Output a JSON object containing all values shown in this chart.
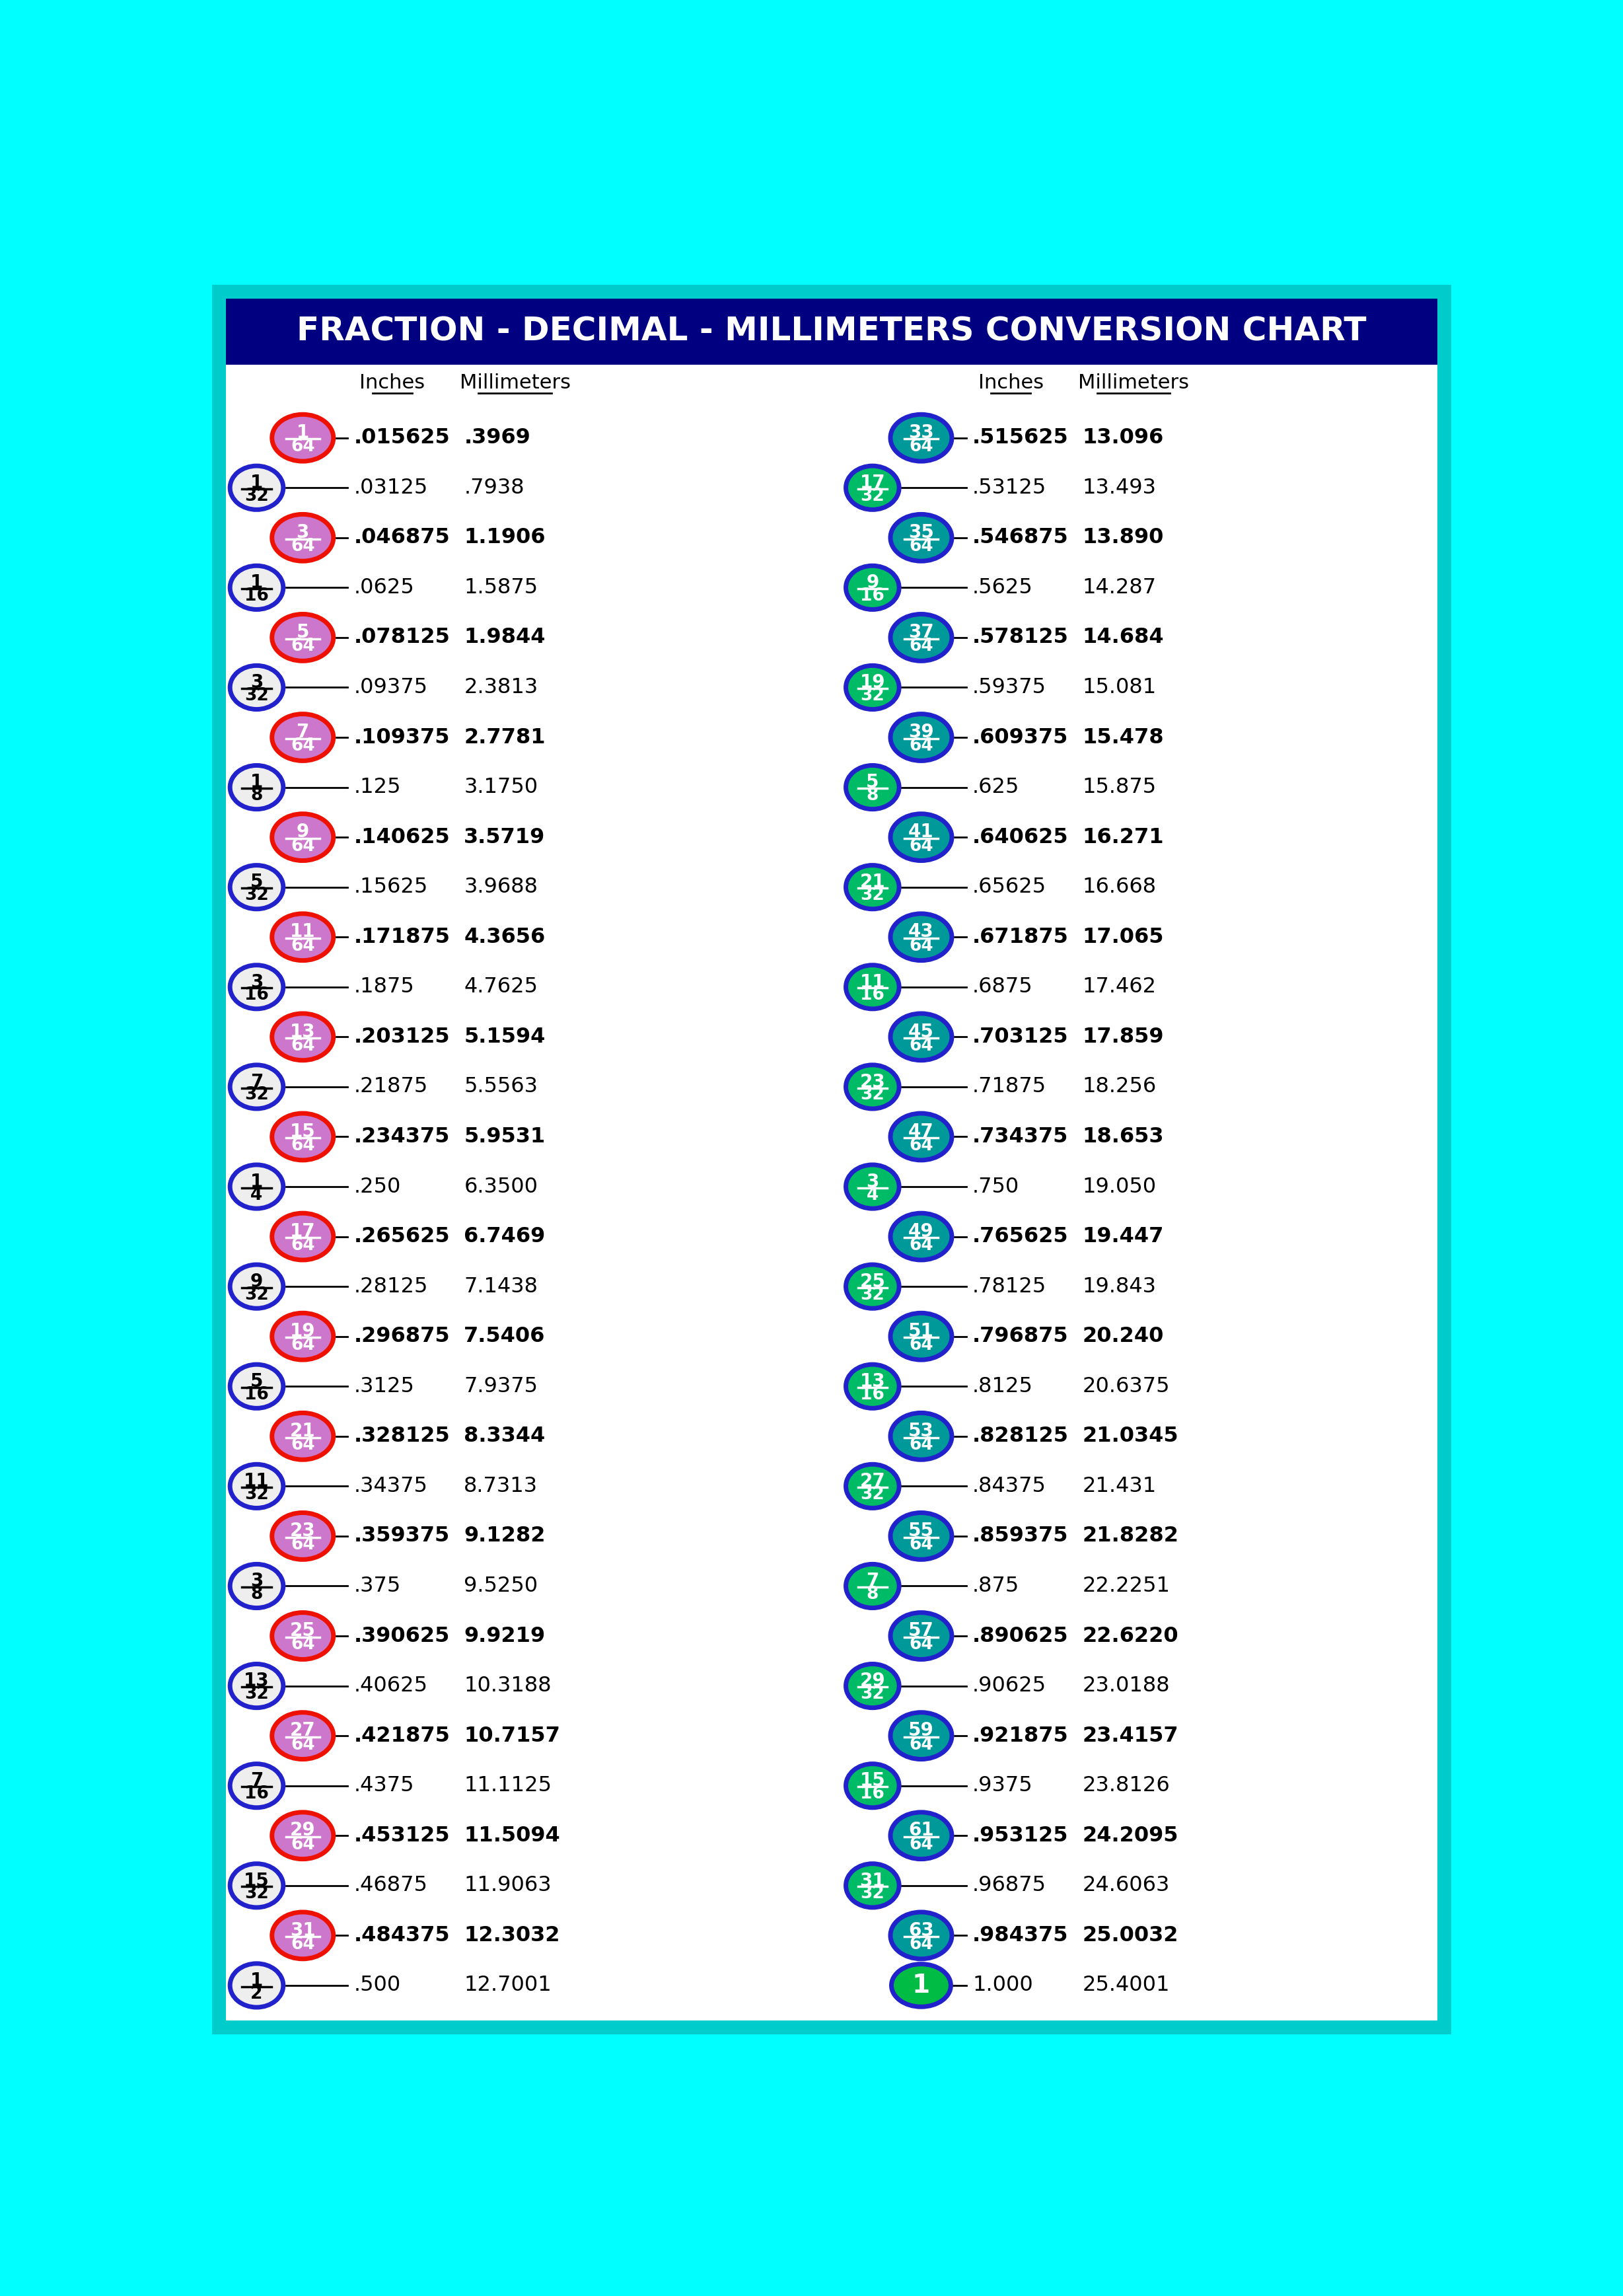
{
  "title": "FRACTION - DECIMAL - MILLIMETERS CONVERSION CHART",
  "title_bg": "#000080",
  "title_color": "#FFFFFF",
  "border_color": "#00FFFF",
  "bg_color": "#FFFFFF",
  "left_data": [
    {
      "frac": "1/64",
      "decimal": ".015625",
      "mm": ".3969",
      "bold": true,
      "circle": "pink_red"
    },
    {
      "frac": "1/32",
      "decimal": ".03125",
      "mm": ".7938",
      "bold": false,
      "circle": "white_blue"
    },
    {
      "frac": "3/64",
      "decimal": ".046875",
      "mm": "1.1906",
      "bold": true,
      "circle": "pink_red"
    },
    {
      "frac": "1/16",
      "decimal": ".0625",
      "mm": "1.5875",
      "bold": false,
      "circle": "white_blue"
    },
    {
      "frac": "5/64",
      "decimal": ".078125",
      "mm": "1.9844",
      "bold": true,
      "circle": "pink_red"
    },
    {
      "frac": "3/32",
      "decimal": ".09375",
      "mm": "2.3813",
      "bold": false,
      "circle": "white_blue"
    },
    {
      "frac": "7/64",
      "decimal": ".109375",
      "mm": "2.7781",
      "bold": true,
      "circle": "pink_red"
    },
    {
      "frac": "1/8",
      "decimal": ".125",
      "mm": "3.1750",
      "bold": false,
      "circle": "white_blue"
    },
    {
      "frac": "9/64",
      "decimal": ".140625",
      "mm": "3.5719",
      "bold": true,
      "circle": "pink_red"
    },
    {
      "frac": "5/32",
      "decimal": ".15625",
      "mm": "3.9688",
      "bold": false,
      "circle": "white_blue"
    },
    {
      "frac": "11/64",
      "decimal": ".171875",
      "mm": "4.3656",
      "bold": true,
      "circle": "pink_red"
    },
    {
      "frac": "3/16",
      "decimal": ".1875",
      "mm": "4.7625",
      "bold": false,
      "circle": "white_blue"
    },
    {
      "frac": "13/64",
      "decimal": ".203125",
      "mm": "5.1594",
      "bold": true,
      "circle": "pink_red"
    },
    {
      "frac": "7/32",
      "decimal": ".21875",
      "mm": "5.5563",
      "bold": false,
      "circle": "white_blue"
    },
    {
      "frac": "15/64",
      "decimal": ".234375",
      "mm": "5.9531",
      "bold": true,
      "circle": "pink_red"
    },
    {
      "frac": "1/4",
      "decimal": ".250",
      "mm": "6.3500",
      "bold": false,
      "circle": "white_blue"
    },
    {
      "frac": "17/64",
      "decimal": ".265625",
      "mm": "6.7469",
      "bold": true,
      "circle": "pink_red"
    },
    {
      "frac": "9/32",
      "decimal": ".28125",
      "mm": "7.1438",
      "bold": false,
      "circle": "white_blue"
    },
    {
      "frac": "19/64",
      "decimal": ".296875",
      "mm": "7.5406",
      "bold": true,
      "circle": "pink_red"
    },
    {
      "frac": "5/16",
      "decimal": ".3125",
      "mm": "7.9375",
      "bold": false,
      "circle": "white_blue"
    },
    {
      "frac": "21/64",
      "decimal": ".328125",
      "mm": "8.3344",
      "bold": true,
      "circle": "pink_red"
    },
    {
      "frac": "11/32",
      "decimal": ".34375",
      "mm": "8.7313",
      "bold": false,
      "circle": "white_blue"
    },
    {
      "frac": "23/64",
      "decimal": ".359375",
      "mm": "9.1282",
      "bold": true,
      "circle": "pink_red"
    },
    {
      "frac": "3/8",
      "decimal": ".375",
      "mm": "9.5250",
      "bold": false,
      "circle": "white_blue"
    },
    {
      "frac": "25/64",
      "decimal": ".390625",
      "mm": "9.9219",
      "bold": true,
      "circle": "pink_red"
    },
    {
      "frac": "13/32",
      "decimal": ".40625",
      "mm": "10.3188",
      "bold": false,
      "circle": "white_blue"
    },
    {
      "frac": "27/64",
      "decimal": ".421875",
      "mm": "10.7157",
      "bold": true,
      "circle": "pink_red"
    },
    {
      "frac": "7/16",
      "decimal": ".4375",
      "mm": "11.1125",
      "bold": false,
      "circle": "white_blue"
    },
    {
      "frac": "29/64",
      "decimal": ".453125",
      "mm": "11.5094",
      "bold": true,
      "circle": "pink_red"
    },
    {
      "frac": "15/32",
      "decimal": ".46875",
      "mm": "11.9063",
      "bold": false,
      "circle": "white_blue"
    },
    {
      "frac": "31/64",
      "decimal": ".484375",
      "mm": "12.3032",
      "bold": true,
      "circle": "pink_red"
    },
    {
      "frac": "1/2",
      "decimal": ".500",
      "mm": "12.7001",
      "bold": false,
      "circle": "white_blue"
    }
  ],
  "right_data": [
    {
      "frac": "33/64",
      "decimal": ".515625",
      "mm": "13.096",
      "bold": true,
      "circle": "teal_blue"
    },
    {
      "frac": "17/32",
      "decimal": ".53125",
      "mm": "13.493",
      "bold": false,
      "circle": "green_blue"
    },
    {
      "frac": "35/64",
      "decimal": ".546875",
      "mm": "13.890",
      "bold": true,
      "circle": "teal_blue"
    },
    {
      "frac": "9/16",
      "decimal": ".5625",
      "mm": "14.287",
      "bold": false,
      "circle": "green_blue"
    },
    {
      "frac": "37/64",
      "decimal": ".578125",
      "mm": "14.684",
      "bold": true,
      "circle": "teal_blue"
    },
    {
      "frac": "19/32",
      "decimal": ".59375",
      "mm": "15.081",
      "bold": false,
      "circle": "green_blue"
    },
    {
      "frac": "39/64",
      "decimal": ".609375",
      "mm": "15.478",
      "bold": true,
      "circle": "teal_blue"
    },
    {
      "frac": "5/8",
      "decimal": ".625",
      "mm": "15.875",
      "bold": false,
      "circle": "green_blue"
    },
    {
      "frac": "41/64",
      "decimal": ".640625",
      "mm": "16.271",
      "bold": true,
      "circle": "teal_blue"
    },
    {
      "frac": "21/32",
      "decimal": ".65625",
      "mm": "16.668",
      "bold": false,
      "circle": "green_blue"
    },
    {
      "frac": "43/64",
      "decimal": ".671875",
      "mm": "17.065",
      "bold": true,
      "circle": "teal_blue"
    },
    {
      "frac": "11/16",
      "decimal": ".6875",
      "mm": "17.462",
      "bold": false,
      "circle": "green_blue"
    },
    {
      "frac": "45/64",
      "decimal": ".703125",
      "mm": "17.859",
      "bold": true,
      "circle": "teal_blue"
    },
    {
      "frac": "23/32",
      "decimal": ".71875",
      "mm": "18.256",
      "bold": false,
      "circle": "green_blue"
    },
    {
      "frac": "47/64",
      "decimal": ".734375",
      "mm": "18.653",
      "bold": true,
      "circle": "teal_blue"
    },
    {
      "frac": "3/4",
      "decimal": ".750",
      "mm": "19.050",
      "bold": false,
      "circle": "green_blue"
    },
    {
      "frac": "49/64",
      "decimal": ".765625",
      "mm": "19.447",
      "bold": true,
      "circle": "teal_blue"
    },
    {
      "frac": "25/32",
      "decimal": ".78125",
      "mm": "19.843",
      "bold": false,
      "circle": "green_blue"
    },
    {
      "frac": "51/64",
      "decimal": ".796875",
      "mm": "20.240",
      "bold": true,
      "circle": "teal_blue"
    },
    {
      "frac": "13/16",
      "decimal": ".8125",
      "mm": "20.6375",
      "bold": false,
      "circle": "green_blue"
    },
    {
      "frac": "53/64",
      "decimal": ".828125",
      "mm": "21.0345",
      "bold": true,
      "circle": "teal_blue"
    },
    {
      "frac": "27/32",
      "decimal": ".84375",
      "mm": "21.431",
      "bold": false,
      "circle": "green_blue"
    },
    {
      "frac": "55/64",
      "decimal": ".859375",
      "mm": "21.8282",
      "bold": true,
      "circle": "teal_blue"
    },
    {
      "frac": "7/8",
      "decimal": ".875",
      "mm": "22.2251",
      "bold": false,
      "circle": "green_blue"
    },
    {
      "frac": "57/64",
      "decimal": ".890625",
      "mm": "22.6220",
      "bold": true,
      "circle": "teal_blue"
    },
    {
      "frac": "29/32",
      "decimal": ".90625",
      "mm": "23.0188",
      "bold": false,
      "circle": "green_blue"
    },
    {
      "frac": "59/64",
      "decimal": ".921875",
      "mm": "23.4157",
      "bold": true,
      "circle": "teal_blue"
    },
    {
      "frac": "15/16",
      "decimal": ".9375",
      "mm": "23.8126",
      "bold": false,
      "circle": "green_blue"
    },
    {
      "frac": "61/64",
      "decimal": ".953125",
      "mm": "24.2095",
      "bold": true,
      "circle": "teal_blue"
    },
    {
      "frac": "31/32",
      "decimal": ".96875",
      "mm": "24.6063",
      "bold": false,
      "circle": "green_blue"
    },
    {
      "frac": "63/64",
      "decimal": ".984375",
      "mm": "25.0032",
      "bold": true,
      "circle": "teal_blue"
    },
    {
      "frac": "1",
      "decimal": "1.000",
      "mm": "25.4001",
      "bold": false,
      "circle": "green_solid"
    }
  ]
}
